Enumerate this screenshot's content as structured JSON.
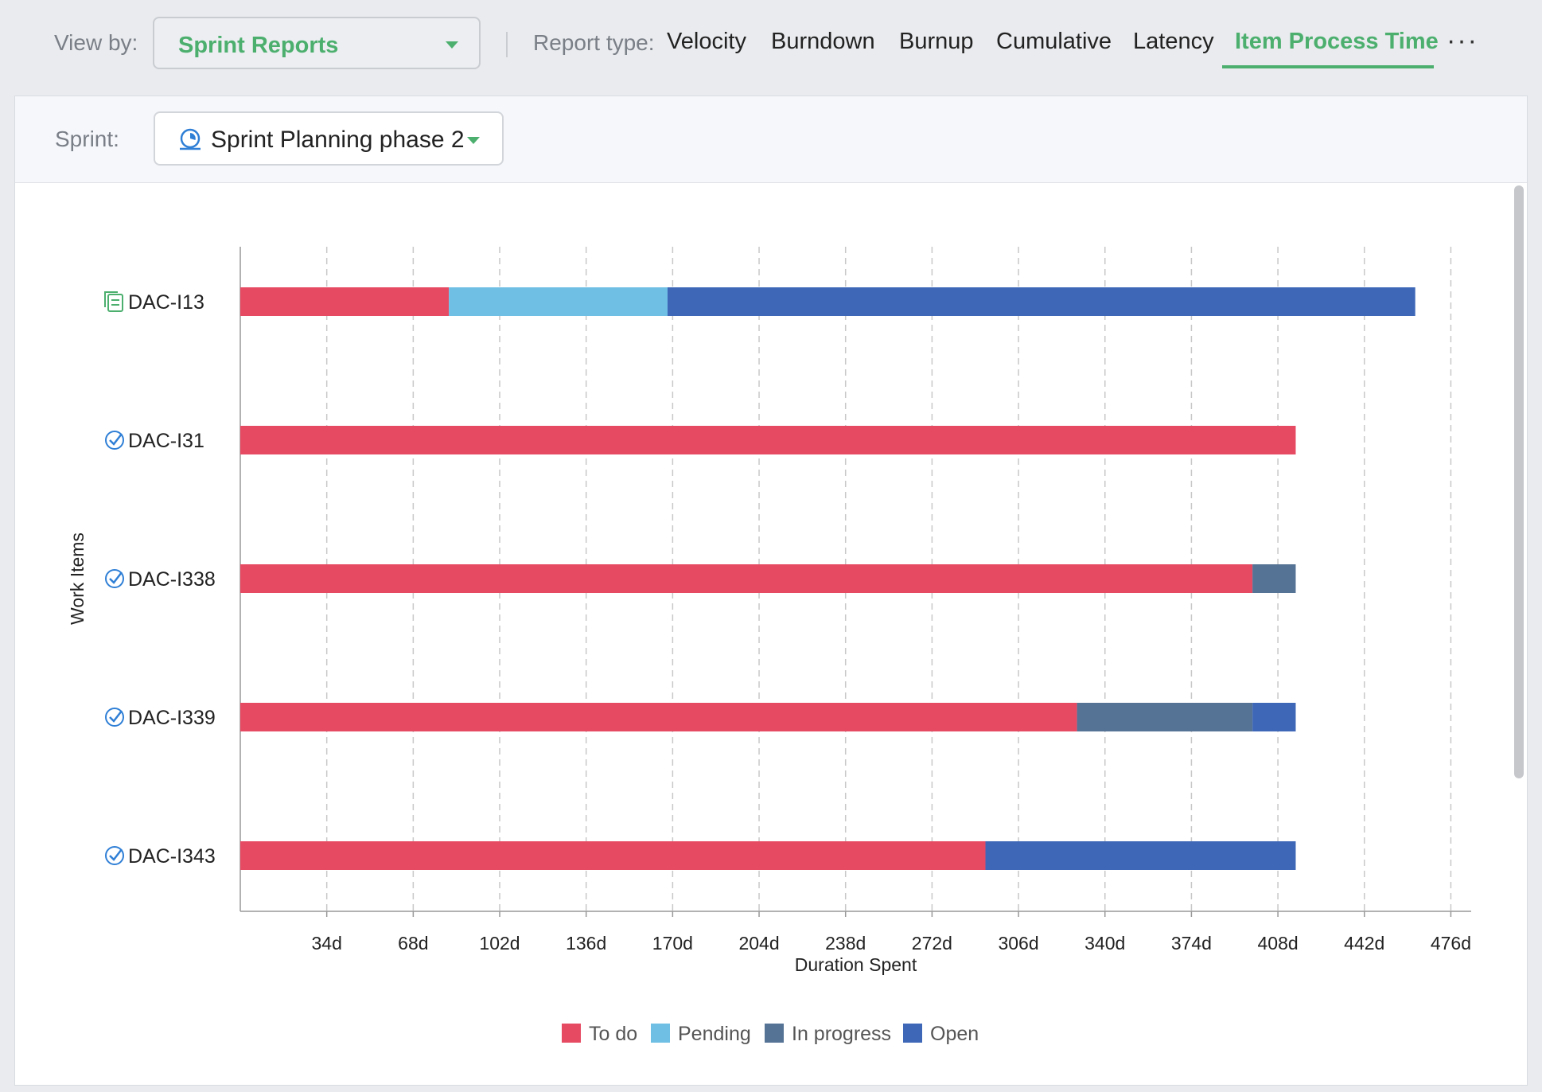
{
  "toolbar": {
    "view_by_label": "View by:",
    "view_by_value": "Sprint Reports",
    "report_type_label": "Report type:",
    "tabs": [
      "Velocity",
      "Burndown",
      "Burnup",
      "Cumulative",
      "Latency",
      "Item Process Time"
    ],
    "active_tab": "Item Process Time",
    "more_label": "···"
  },
  "sprint_bar": {
    "label": "Sprint:",
    "value": "Sprint Planning phase 2"
  },
  "colors": {
    "accent": "#4caf6e",
    "todo": "#e64a62",
    "pending": "#6fbfe4",
    "in_progress": "#557395",
    "open": "#3e67b8"
  },
  "chart_data": {
    "type": "bar",
    "orientation": "horizontal",
    "stacked": true,
    "categories": [
      "DAC-I13",
      "DAC-I31",
      "DAC-I338",
      "DAC-I339",
      "DAC-I343"
    ],
    "category_icons": [
      "document-icon",
      "task-check-icon",
      "task-check-icon",
      "task-check-icon",
      "task-check-icon"
    ],
    "series": [
      {
        "name": "To do",
        "color": "#e64a62",
        "values": [
          82,
          415,
          398,
          329,
          293
        ]
      },
      {
        "name": "Pending",
        "color": "#6fbfe4",
        "values": [
          86,
          0,
          0,
          0,
          0
        ]
      },
      {
        "name": "In progress",
        "color": "#557395",
        "values": [
          0,
          0,
          17,
          69,
          0
        ]
      },
      {
        "name": "Open",
        "color": "#3e67b8",
        "values": [
          294,
          0,
          0,
          17,
          122
        ]
      }
    ],
    "xlabel": "Duration Spent",
    "ylabel": "Work Items",
    "xlim": [
      0,
      484
    ],
    "xticks": [
      34,
      68,
      102,
      136,
      170,
      204,
      238,
      272,
      306,
      340,
      374,
      408,
      442,
      476
    ],
    "xtick_labels": [
      "34d",
      "68d",
      "102d",
      "136d",
      "170d",
      "204d",
      "238d",
      "272d",
      "306d",
      "340d",
      "374d",
      "408d",
      "442d",
      "476d"
    ],
    "grid": true,
    "legend_position": "bottom"
  }
}
